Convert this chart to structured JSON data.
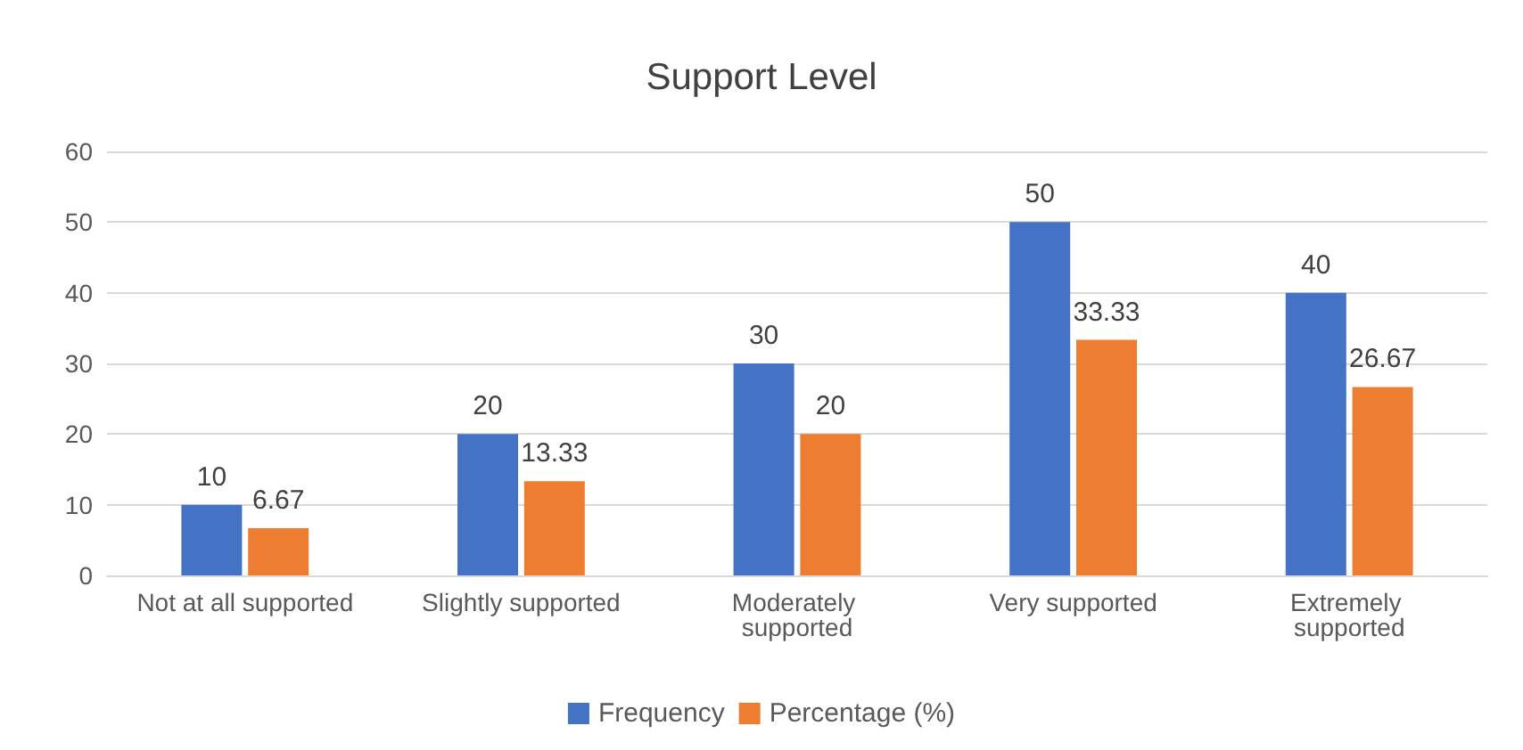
{
  "chart_data": {
    "type": "bar",
    "title": "Support Level",
    "categories": [
      "Not at all supported",
      "Slightly supported",
      "Moderately supported",
      "Very supported",
      "Extremely supported"
    ],
    "series": [
      {
        "name": "Frequency",
        "color": "#4472c4",
        "values": [
          10,
          20,
          30,
          50,
          40
        ]
      },
      {
        "name": "Percentage (%)",
        "color": "#ed7d31",
        "values": [
          6.67,
          13.33,
          20,
          33.33,
          26.67
        ]
      }
    ],
    "ylim": [
      0,
      60
    ],
    "yticks": [
      0,
      10,
      20,
      30,
      40,
      50,
      60
    ],
    "grid": "y",
    "legend": "bottom",
    "data_labels": true
  }
}
